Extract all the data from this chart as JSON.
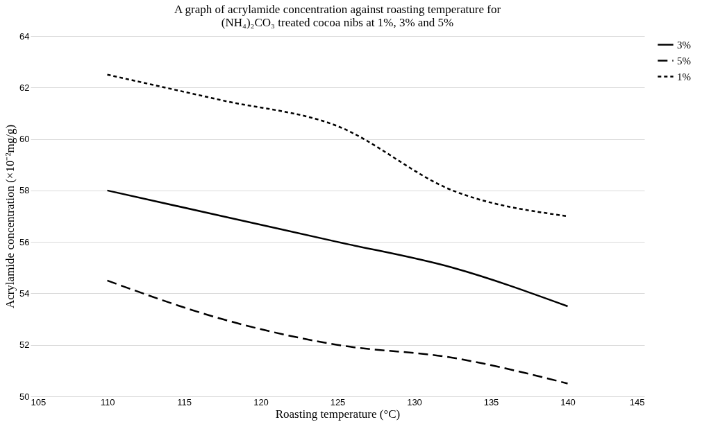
{
  "chart_data": {
    "type": "line",
    "title": "A graph of acrylamide concentration against roasting temperature for\n(NH₄)₂CO₃ treated cocoa nibs at 1%, 3% and 5%",
    "xlabel": "Roasting temperature (°C)",
    "ylabel": "Acrylamide  concentration (×10⁻²mg/g)",
    "x": [
      110,
      117.5,
      125,
      132.5,
      140
    ],
    "series": [
      {
        "name": "3%",
        "color": "#000000",
        "line_style": "solid",
        "values": [
          58,
          57,
          56,
          55,
          53.5
        ]
      },
      {
        "name": "5%",
        "color": "#000000",
        "line_style": "dashed",
        "values": [
          54.5,
          53,
          52,
          51.5,
          50.5
        ]
      },
      {
        "name": "1%",
        "color": "#000000",
        "line_style": "dotted",
        "values": [
          62.5,
          61.5,
          60.5,
          58,
          57
        ]
      }
    ],
    "xlim": [
      105,
      145
    ],
    "xticks": [
      105,
      110,
      115,
      120,
      125,
      130,
      135,
      140,
      145
    ],
    "ylim": [
      50,
      64
    ],
    "yticks": [
      50,
      52,
      54,
      56,
      58,
      60,
      62,
      64
    ],
    "grid": "y",
    "legend": "right",
    "marker": "none"
  }
}
